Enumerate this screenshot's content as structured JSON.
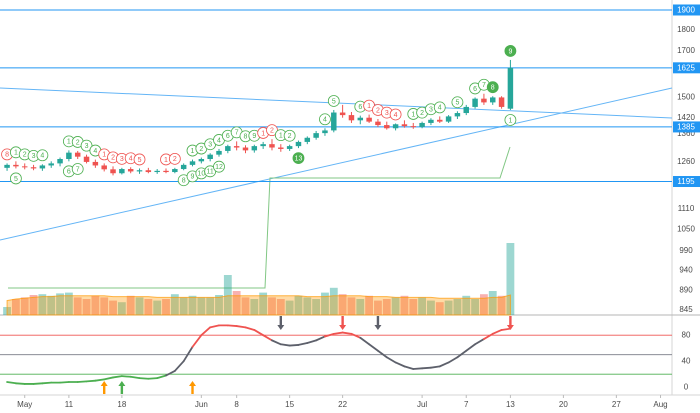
{
  "chart_data": {
    "type": "candlestick",
    "log": true,
    "up_color": "#26a69a",
    "down_color": "#ef5350",
    "xlim": [
      -0.8,
      75.3
    ],
    "xticks": [
      {
        "value": 2,
        "label": "May"
      },
      {
        "value": 7,
        "label": "11"
      },
      {
        "value": 13,
        "label": "18"
      },
      {
        "value": 22,
        "label": "Jun"
      },
      {
        "value": 26,
        "label": "8"
      },
      {
        "value": 32,
        "label": "15"
      },
      {
        "value": 38,
        "label": "22"
      },
      {
        "value": 47,
        "label": "Jul"
      },
      {
        "value": 52,
        "label": "7"
      },
      {
        "value": 57,
        "label": "13"
      },
      {
        "value": 63,
        "label": "20"
      },
      {
        "value": 69,
        "label": "27"
      },
      {
        "value": 74,
        "label": "Aug"
      }
    ],
    "ylim": [
      833,
      1952
    ],
    "yticks": [
      1800,
      1700,
      1500,
      1420,
      1360,
      1260,
      1110,
      1050,
      990,
      940,
      890,
      845
    ],
    "levels": [
      1900,
      1625,
      1385,
      1195
    ],
    "level_color": "#2196f3",
    "open": [
      1240,
      1250,
      1245,
      1242,
      1238,
      1248,
      1255,
      1270,
      1292,
      1278,
      1260,
      1248,
      1235,
      1222,
      1236,
      1228,
      1232,
      1226,
      1230,
      1226,
      1236,
      1250,
      1262,
      1270,
      1285,
      1298,
      1315,
      1310,
      1300,
      1315,
      1322,
      1310,
      1305,
      1315,
      1330,
      1345,
      1362,
      1372,
      1440,
      1430,
      1410,
      1420,
      1405,
      1392,
      1380,
      1395,
      1388,
      1385,
      1400,
      1412,
      1405,
      1425,
      1438,
      1462,
      1495,
      1480,
      1500,
      1455
    ],
    "high": [
      1255,
      1262,
      1255,
      1250,
      1252,
      1262,
      1275,
      1300,
      1298,
      1285,
      1268,
      1255,
      1245,
      1240,
      1242,
      1238,
      1240,
      1236,
      1238,
      1240,
      1255,
      1268,
      1275,
      1290,
      1305,
      1320,
      1332,
      1318,
      1320,
      1330,
      1340,
      1322,
      1320,
      1335,
      1350,
      1370,
      1380,
      1450,
      1470,
      1442,
      1428,
      1432,
      1415,
      1405,
      1398,
      1410,
      1400,
      1405,
      1418,
      1425,
      1430,
      1445,
      1470,
      1500,
      1515,
      1505,
      1505,
      1660
    ],
    "low": [
      1230,
      1238,
      1235,
      1232,
      1230,
      1240,
      1245,
      1262,
      1270,
      1255,
      1240,
      1228,
      1215,
      1218,
      1222,
      1220,
      1222,
      1220,
      1222,
      1222,
      1232,
      1245,
      1255,
      1262,
      1278,
      1290,
      1300,
      1290,
      1292,
      1305,
      1300,
      1295,
      1298,
      1308,
      1322,
      1338,
      1352,
      1365,
      1420,
      1400,
      1395,
      1400,
      1385,
      1375,
      1372,
      1382,
      1378,
      1380,
      1392,
      1400,
      1400,
      1415,
      1430,
      1455,
      1470,
      1470,
      1455,
      1450
    ],
    "close": [
      1250,
      1245,
      1242,
      1238,
      1248,
      1255,
      1270,
      1292,
      1278,
      1260,
      1248,
      1235,
      1222,
      1236,
      1228,
      1232,
      1226,
      1230,
      1226,
      1236,
      1250,
      1262,
      1270,
      1285,
      1298,
      1315,
      1310,
      1300,
      1315,
      1322,
      1310,
      1305,
      1315,
      1330,
      1345,
      1362,
      1372,
      1440,
      1430,
      1410,
      1420,
      1405,
      1392,
      1380,
      1395,
      1388,
      1385,
      1400,
      1412,
      1405,
      1425,
      1438,
      1462,
      1495,
      1480,
      1500,
      1462,
      1625
    ],
    "td_labels": [
      {
        "index": 0,
        "label": "8",
        "color": "#ef5350",
        "pos": "above"
      },
      {
        "index": 1,
        "label": "1",
        "color": "#4caf50",
        "pos": "above"
      },
      {
        "index": 2,
        "label": "2",
        "color": "#4caf50",
        "pos": "above"
      },
      {
        "index": 3,
        "label": "3",
        "color": "#4caf50",
        "pos": "above"
      },
      {
        "index": 4,
        "label": "4",
        "color": "#4caf50",
        "pos": "above"
      },
      {
        "index": 1,
        "label": "5",
        "color": "#4caf50",
        "pos": "below"
      },
      {
        "index": 7,
        "label": "1",
        "color": "#4caf50",
        "pos": "above"
      },
      {
        "index": 8,
        "label": "2",
        "color": "#4caf50",
        "pos": "above"
      },
      {
        "index": 9,
        "label": "3",
        "color": "#4caf50",
        "pos": "above"
      },
      {
        "index": 10,
        "label": "4",
        "color": "#4caf50",
        "pos": "above"
      },
      {
        "index": 11,
        "label": "1",
        "color": "#ef5350",
        "pos": "above"
      },
      {
        "index": 12,
        "label": "2",
        "color": "#ef5350",
        "pos": "above"
      },
      {
        "index": 13,
        "label": "3",
        "color": "#ef5350",
        "pos": "above"
      },
      {
        "index": 14,
        "label": "4",
        "color": "#ef5350",
        "pos": "above"
      },
      {
        "index": 15,
        "label": "5",
        "color": "#ef5350",
        "pos": "above"
      },
      {
        "index": 7,
        "label": "6",
        "color": "#4caf50",
        "pos": "below"
      },
      {
        "index": 8,
        "label": "7",
        "color": "#4caf50",
        "pos": "below"
      },
      {
        "index": 18,
        "label": "1",
        "color": "#ef5350",
        "pos": "above"
      },
      {
        "index": 19,
        "label": "2",
        "color": "#ef5350",
        "pos": "above"
      },
      {
        "index": 20,
        "label": "8",
        "color": "#4caf50",
        "pos": "below"
      },
      {
        "index": 21,
        "label": "9",
        "color": "#4caf50",
        "pos": "below"
      },
      {
        "index": 22,
        "label": "10",
        "color": "#4caf50",
        "pos": "below"
      },
      {
        "index": 23,
        "label": "11",
        "color": "#4caf50",
        "pos": "below"
      },
      {
        "index": 24,
        "label": "12",
        "color": "#4caf50",
        "pos": "below"
      },
      {
        "index": 21,
        "label": "1",
        "color": "#4caf50",
        "pos": "above"
      },
      {
        "index": 22,
        "label": "2",
        "color": "#4caf50",
        "pos": "above"
      },
      {
        "index": 23,
        "label": "3",
        "color": "#4caf50",
        "pos": "above"
      },
      {
        "index": 24,
        "label": "4",
        "color": "#4caf50",
        "pos": "above"
      },
      {
        "index": 25,
        "label": "6",
        "color": "#4caf50",
        "pos": "above"
      },
      {
        "index": 26,
        "label": "7",
        "color": "#4caf50",
        "pos": "above"
      },
      {
        "index": 27,
        "label": "8",
        "color": "#4caf50",
        "pos": "above"
      },
      {
        "index": 28,
        "label": "9",
        "color": "#4caf50",
        "pos": "above"
      },
      {
        "index": 29,
        "label": "1",
        "color": "#ef5350",
        "pos": "above"
      },
      {
        "index": 30,
        "label": "2",
        "color": "#ef5350",
        "pos": "above"
      },
      {
        "index": 31,
        "label": "1",
        "color": "#4caf50",
        "pos": "above"
      },
      {
        "index": 32,
        "label": "2",
        "color": "#4caf50",
        "pos": "above"
      },
      {
        "index": 33,
        "label": "13",
        "color": "#4caf50",
        "pos": "below",
        "filled": true
      },
      {
        "index": 36,
        "label": "4",
        "color": "#4caf50",
        "pos": "above"
      },
      {
        "index": 37,
        "label": "5",
        "color": "#4caf50",
        "pos": "above"
      },
      {
        "index": 40,
        "label": "6",
        "color": "#4caf50",
        "pos": "above"
      },
      {
        "index": 41,
        "label": "1",
        "color": "#ef5350",
        "pos": "above"
      },
      {
        "index": 42,
        "label": "2",
        "color": "#ef5350",
        "pos": "above"
      },
      {
        "index": 43,
        "label": "3",
        "color": "#ef5350",
        "pos": "above"
      },
      {
        "index": 44,
        "label": "4",
        "color": "#ef5350",
        "pos": "above"
      },
      {
        "index": 46,
        "label": "1",
        "color": "#4caf50",
        "pos": "above"
      },
      {
        "index": 47,
        "label": "2",
        "color": "#4caf50",
        "pos": "above"
      },
      {
        "index": 48,
        "label": "3",
        "color": "#4caf50",
        "pos": "above"
      },
      {
        "index": 49,
        "label": "4",
        "color": "#4caf50",
        "pos": "above"
      },
      {
        "index": 51,
        "label": "5",
        "color": "#4caf50",
        "pos": "above"
      },
      {
        "index": 53,
        "label": "6",
        "color": "#4caf50",
        "pos": "above"
      },
      {
        "index": 54,
        "label": "7",
        "color": "#4caf50",
        "pos": "above"
      },
      {
        "index": 55,
        "label": "8",
        "color": "#4caf50",
        "pos": "above",
        "filled": true
      },
      {
        "index": 57,
        "label": "9",
        "color": "#4caf50",
        "pos": "above",
        "filled": true
      },
      {
        "index": 57,
        "label": "1",
        "color": "#4caf50",
        "pos": "below"
      }
    ],
    "volume": {
      "ylim": [
        0,
        100
      ],
      "values": [
        10,
        20,
        22,
        25,
        26,
        24,
        27,
        28,
        22,
        20,
        24,
        22,
        18,
        16,
        24,
        22,
        20,
        18,
        20,
        26,
        22,
        24,
        22,
        22,
        25,
        50,
        30,
        22,
        20,
        28,
        22,
        20,
        18,
        24,
        22,
        20,
        28,
        34,
        26,
        22,
        20,
        24,
        18,
        20,
        22,
        24,
        20,
        22,
        18,
        16,
        18,
        20,
        24,
        20,
        26,
        30,
        24,
        90
      ],
      "ma": [
        18,
        20,
        21,
        22,
        23,
        23,
        24,
        24,
        24,
        24,
        24,
        24,
        23,
        23,
        23,
        23,
        23,
        22,
        22,
        22,
        22,
        22,
        22,
        22,
        22,
        24,
        24,
        24,
        24,
        24,
        24,
        24,
        24,
        24,
        23,
        23,
        23,
        24,
        24,
        24,
        24,
        23,
        23,
        23,
        22,
        22,
        22,
        22,
        22,
        21,
        21,
        21,
        21,
        21,
        21,
        22,
        22,
        25
      ],
      "ma_color": "#ff9800"
    },
    "oscillator": {
      "ylim": [
        -12,
        111
      ],
      "yticks": [
        0,
        40,
        80
      ],
      "bands": [
        {
          "value": 80,
          "color": "#ef5350"
        },
        {
          "value": 50,
          "color": "#787b86"
        },
        {
          "value": 20,
          "color": "#4caf50"
        }
      ],
      "line_color": "#5d606b",
      "values": [
        8,
        6,
        5,
        5,
        6,
        7,
        7,
        8,
        8,
        9,
        10,
        12,
        15,
        17,
        16,
        14,
        13,
        14,
        18,
        25,
        40,
        62,
        80,
        92,
        95,
        95,
        94,
        92,
        88,
        80,
        72,
        66,
        64,
        65,
        68,
        72,
        78,
        82,
        84,
        82,
        76,
        66,
        56,
        46,
        38,
        32,
        28,
        29,
        30,
        32,
        38,
        46,
        56,
        66,
        74,
        82,
        88,
        90
      ],
      "signals": [
        {
          "index": 11,
          "direction": "up",
          "color": "#ff9800"
        },
        {
          "index": 13,
          "direction": "up",
          "color": "#4caf50"
        },
        {
          "index": 21,
          "direction": "up",
          "color": "#ff9800"
        },
        {
          "index": 31,
          "direction": "down",
          "color": "#5d606b"
        },
        {
          "index": 38,
          "direction": "down",
          "color": "#ef5350"
        },
        {
          "index": 42,
          "direction": "down",
          "color": "#5d606b"
        },
        {
          "index": 57,
          "direction": "down",
          "color": "#ef5350"
        }
      ]
    }
  }
}
